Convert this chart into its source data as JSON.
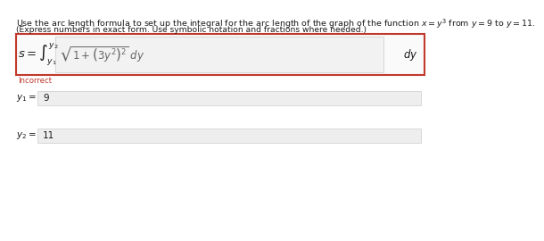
{
  "title_line1": "Use the arc length formula to set up the integral for the arc length of the graph of the function $x = y^3$ from $y = 9$ to $y = 11$.",
  "title_line2": "(Express numbers in exact form. Use symbolic notation and fractions where needed.)",
  "incorrect_label": "Incorrect",
  "y1_label": "$y_1 =$",
  "y1_value": "9",
  "y2_label": "$y_2 =$",
  "y2_value": "11",
  "bg_color": "#ffffff",
  "box_border_color": "#c0392b",
  "box_fill_color": "#fafafa",
  "input_box_color": "#eeeeee",
  "input_border_color": "#cccccc",
  "text_color": "#1a1a1a",
  "incorrect_color": "#c0392b",
  "title_fontsize": 6.8,
  "label_fontsize": 7.5,
  "integral_fontsize": 8.5
}
